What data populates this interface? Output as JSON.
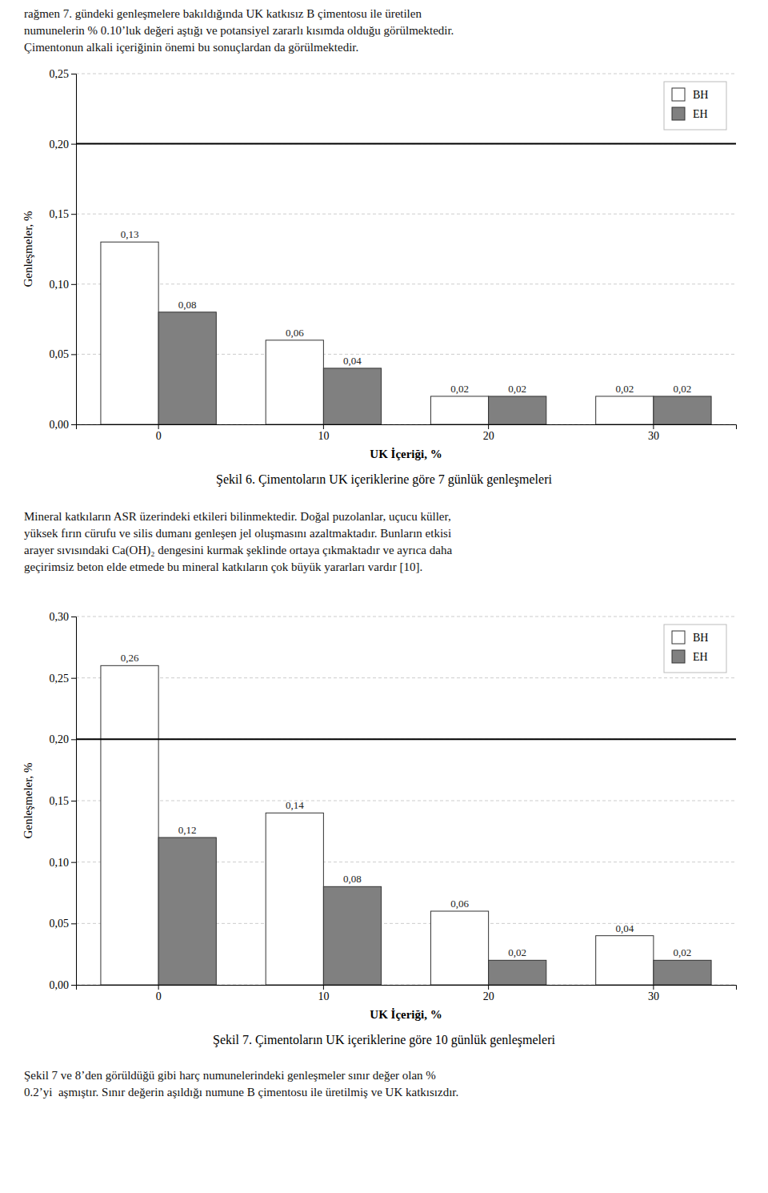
{
  "text": {
    "top": [
      "rağmen 7. gündeki genleşmelere bakıldığında UK katkısız B çimentosu ile üretilen",
      "numunelerin % 0.10’luk değeri aştığı ve potansiyel zararlı kısımda olduğu görülmektedir.",
      "Çimentonun alkali içeriğinin önemi bu sonuçlardan da görülmektedir."
    ],
    "middle": [
      "Mineral katkıların ASR üzerindeki etkileri bilinmektedir. Doğal puzolanlar, uçucu küller,",
      "yüksek fırın cürufu ve silis dumanı genleşen jel oluşmasını azaltmaktadır. Bunların etkisi",
      "arayer sıvısındaki Ca(OH)₂ dengesini kurmak şeklinde ortaya çıkmaktadır ve ayrıca daha",
      "geçirimsiz beton elde etmede bu mineral katkıların çok büyük yararları vardır [10]."
    ],
    "bottom": [
      "Şekil 7 ve 8’den görüldüğü gibi harç numunelerindeki genleşmeler sınır değer olan %",
      "0.2’yi  aşmıştır. Sınır değerin aşıldığı numune B çimentosu ile üretilmiş ve UK katkısızdır."
    ]
  },
  "chart_data": [
    {
      "type": "bar",
      "title": "Şekil 6. Çimentoların UK içeriklerine göre 7 günlük genleşmeleri",
      "xlabel": "UK İçeriği, %",
      "ylabel": "Genleşmeler, %",
      "categories": [
        0,
        10,
        20,
        30
      ],
      "series": [
        {
          "name": "BH",
          "color": "#ffffff",
          "values": [
            0.13,
            0.06,
            0.02,
            0.02
          ],
          "value_labels": [
            "0,13",
            "0,06",
            "0,02",
            "0,02"
          ]
        },
        {
          "name": "EH",
          "color": "#808080",
          "values": [
            0.08,
            0.04,
            0.02,
            0.02
          ],
          "value_labels": [
            "0,08",
            "0,04",
            "0,02",
            "0,02"
          ]
        }
      ],
      "ylim": [
        0.0,
        0.25
      ],
      "yticks": [
        {
          "value": 0.0,
          "label": "0,00"
        },
        {
          "value": 0.05,
          "label": "0,05"
        },
        {
          "value": 0.1,
          "label": "0,10"
        },
        {
          "value": 0.15,
          "label": "0,15"
        },
        {
          "value": 0.2,
          "label": "0,20"
        },
        {
          "value": 0.25,
          "label": "0,25"
        }
      ],
      "hline": 0.2,
      "grid": true,
      "legend": "upper right",
      "data_labels": true
    },
    {
      "type": "bar",
      "title": "Şekil 7. Çimentoların UK içeriklerine göre 10 günlük genleşmeleri",
      "xlabel": "UK İçeriği, %",
      "ylabel": "Genleşmeler, %",
      "categories": [
        0,
        10,
        20,
        30
      ],
      "series": [
        {
          "name": "BH",
          "color": "#ffffff",
          "values": [
            0.26,
            0.14,
            0.06,
            0.04
          ],
          "value_labels": [
            "0,26",
            "0,14",
            "0,06",
            "0,04"
          ]
        },
        {
          "name": "EH",
          "color": "#808080",
          "values": [
            0.12,
            0.08,
            0.02,
            0.02
          ],
          "value_labels": [
            "0,12",
            "0,08",
            "0,02",
            "0,02"
          ]
        }
      ],
      "ylim": [
        0.0,
        0.3
      ],
      "yticks": [
        {
          "value": 0.0,
          "label": "0,00"
        },
        {
          "value": 0.05,
          "label": "0,05"
        },
        {
          "value": 0.1,
          "label": "0,10"
        },
        {
          "value": 0.15,
          "label": "0,15"
        },
        {
          "value": 0.2,
          "label": "0,20"
        },
        {
          "value": 0.25,
          "label": "0,25"
        },
        {
          "value": 0.3,
          "label": "0,30"
        }
      ],
      "hline": 0.2,
      "grid": true,
      "legend": "upper right",
      "data_labels": true
    }
  ]
}
